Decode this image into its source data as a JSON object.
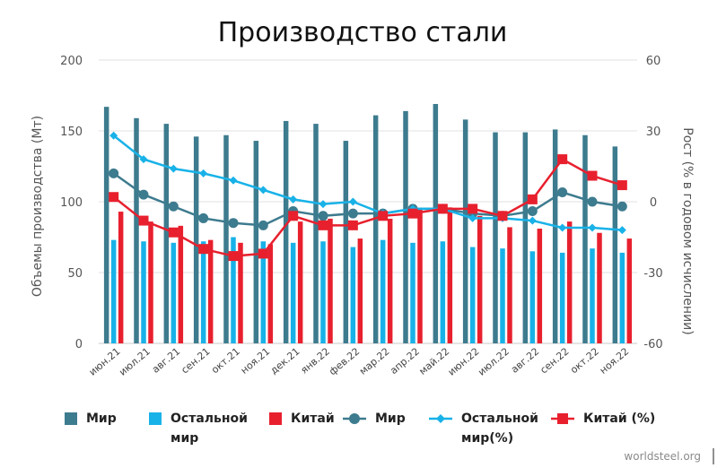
{
  "chart_data": {
    "type": "bar",
    "title": "Производство стали",
    "ylabel": "Объемы производства (Мт)",
    "y2label": "Рост (% в годовом исчислении)",
    "ylim": [
      0,
      200
    ],
    "yticks": [
      0,
      50,
      100,
      150,
      200
    ],
    "y2lim": [
      -60,
      60
    ],
    "y2ticks": [
      -60,
      -30,
      0,
      30,
      60
    ],
    "grid": true,
    "legend_position": "bottom",
    "categories": [
      "июн.21",
      "июл.21",
      "авг.21",
      "сен.21",
      "окт.21",
      "ноя.21",
      "дек.21",
      "янв.22",
      "фев.22",
      "мар.22",
      "апр.22",
      "май.22",
      "июн.22",
      "июл.22",
      "авг.22",
      "сен.22",
      "окт.22",
      "ноя.22"
    ],
    "bar_series": [
      {
        "name": "Мир",
        "color": "#3d7b8e",
        "values": [
          167,
          159,
          155,
          146,
          147,
          143,
          157,
          155,
          143,
          161,
          164,
          169,
          158,
          149,
          149,
          151,
          147,
          139
        ]
      },
      {
        "name": "Остальной мир",
        "color": "#18b2e8",
        "values": [
          73,
          72,
          71,
          72,
          75,
          72,
          71,
          72,
          68,
          73,
          71,
          72,
          68,
          67,
          65,
          64,
          67,
          64
        ]
      },
      {
        "name": "Китай",
        "color": "#e8202e",
        "values": [
          93,
          86,
          83,
          73,
          71,
          70,
          86,
          88,
          74,
          88,
          95,
          96,
          90,
          82,
          81,
          86,
          78,
          74
        ]
      }
    ],
    "line_series": [
      {
        "name": "Мир",
        "color": "#3d7b8e",
        "marker": "circle",
        "values": [
          12,
          3,
          -2,
          -7,
          -9,
          -10,
          -4,
          -6,
          -5,
          -5,
          -3,
          -3,
          -5,
          -6,
          -4,
          4,
          0,
          -2
        ]
      },
      {
        "name": "Остальной мир(%)",
        "color": "#18b2e8",
        "marker": "diamond",
        "values": [
          28,
          18,
          14,
          12,
          9,
          5,
          1,
          -1,
          0,
          -5,
          -3,
          -3,
          -7,
          -7,
          -8,
          -11,
          -11,
          -12
        ]
      },
      {
        "name": "Китай (%)",
        "color": "#e8202e",
        "marker": "square",
        "values": [
          2,
          -8,
          -13,
          -20,
          -23,
          -22,
          -6,
          -10,
          -10,
          -6,
          -5,
          -3,
          -3,
          -6,
          1,
          18,
          11,
          7
        ]
      }
    ],
    "legend": [
      {
        "label": "Мир",
        "color": "#3d7b8e",
        "kind": "bar"
      },
      {
        "label": "Остальной",
        "label2": "мир",
        "color": "#18b2e8",
        "kind": "bar"
      },
      {
        "label": "Китай",
        "color": "#e8202e",
        "kind": "bar"
      },
      {
        "label": "Мир",
        "color": "#3d7b8e",
        "kind": "line-circle"
      },
      {
        "label": "Остальной",
        "label2": "мир(%)",
        "color": "#18b2e8",
        "kind": "line-diamond"
      },
      {
        "label": "Китай (%)",
        "color": "#e8202e",
        "kind": "line-square"
      }
    ],
    "source": "worldsteel.org"
  }
}
